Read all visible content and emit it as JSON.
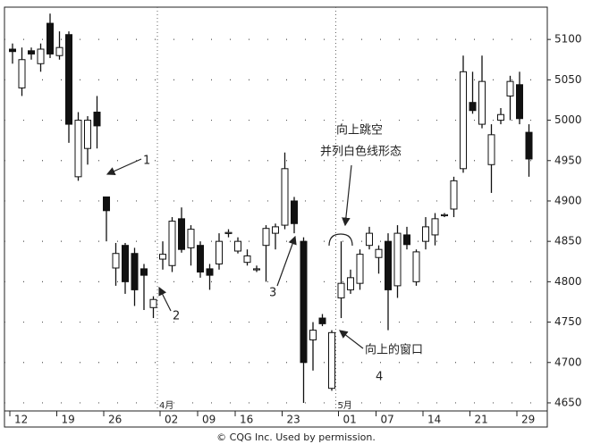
{
  "chart_data": {
    "type": "candlestick",
    "categories": [
      "12",
      null,
      null,
      null,
      null,
      "19",
      null,
      null,
      null,
      null,
      "26",
      null,
      null,
      null,
      null,
      null,
      "02",
      null,
      null,
      null,
      "09",
      null,
      null,
      null,
      "16",
      null,
      null,
      null,
      null,
      "23",
      null,
      null,
      null,
      null,
      null,
      "01",
      null,
      null,
      null,
      "07",
      null,
      null,
      null,
      null,
      "14",
      null,
      null,
      null,
      null,
      "21",
      null,
      null,
      null,
      null,
      "29",
      null
    ],
    "month_labels": [
      null,
      null,
      null,
      null,
      null,
      null,
      null,
      null,
      null,
      null,
      null,
      null,
      null,
      null,
      null,
      null,
      "4月",
      null,
      null,
      null,
      null,
      null,
      null,
      null,
      null,
      null,
      null,
      null,
      null,
      null,
      null,
      null,
      null,
      null,
      null,
      "5月",
      null,
      null,
      null,
      null,
      null,
      null,
      null,
      null,
      null,
      null,
      null,
      null,
      null,
      null,
      null,
      null,
      null,
      null,
      null,
      null
    ],
    "open": [
      5088,
      5040,
      5086,
      5070,
      5120,
      5080,
      5106,
      4930,
      4965,
      5010,
      4905,
      4817,
      4845,
      4835,
      4816,
      4768,
      4828,
      4820,
      4878,
      4842,
      4845,
      4816,
      4822,
      4860,
      4838,
      4824,
      4815,
      4845,
      4860,
      4870,
      4900,
      4850,
      4728,
      4755,
      4668,
      4780,
      4790,
      4798,
      4845,
      4830,
      4850,
      4795,
      4858,
      4800,
      4850,
      4858,
      4882,
      4890,
      4940,
      5022,
      4995,
      4945,
      5000,
      5030,
      5044,
      4985
    ],
    "high": [
      5095,
      5090,
      5090,
      5095,
      5132,
      5110,
      5110,
      5010,
      5005,
      5030,
      4905,
      4848,
      4848,
      4842,
      4822,
      4782,
      4850,
      4880,
      4892,
      4870,
      4850,
      4822,
      4860,
      4865,
      4855,
      4840,
      4820,
      4870,
      4872,
      4960,
      4905,
      4855,
      4750,
      4760,
      4740,
      4850,
      4815,
      4840,
      4868,
      4845,
      4860,
      4870,
      4868,
      4840,
      4880,
      4885,
      4885,
      4930,
      5080,
      5060,
      5080,
      4995,
      5015,
      5055,
      5060,
      4995
    ],
    "low": [
      5070,
      5030,
      5075,
      5060,
      5077,
      5075,
      4972,
      4925,
      4945,
      4965,
      4850,
      4795,
      4785,
      4770,
      4765,
      4755,
      4815,
      4812,
      4836,
      4820,
      4805,
      4790,
      4815,
      4855,
      4835,
      4820,
      4812,
      4800,
      4840,
      4865,
      4860,
      4650,
      4690,
      4745,
      4665,
      4755,
      4785,
      4790,
      4840,
      4810,
      4740,
      4780,
      4840,
      4795,
      4840,
      4845,
      4880,
      4880,
      4935,
      5008,
      4990,
      4910,
      4995,
      5000,
      4995,
      4930
    ],
    "close": [
      5085,
      5075,
      5082,
      5088,
      5082,
      5090,
      4995,
      5000,
      5000,
      4993,
      4888,
      4835,
      4800,
      4790,
      4808,
      4778,
      4834,
      4875,
      4840,
      4865,
      4812,
      4808,
      4850,
      4861,
      4850,
      4832,
      4816,
      4866,
      4868,
      4940,
      4872,
      4700,
      4740,
      4748,
      4737,
      4798,
      4805,
      4834,
      4860,
      4840,
      4790,
      4860,
      4846,
      4837,
      4868,
      4878,
      4883,
      4925,
      5060,
      5012,
      5048,
      4982,
      5007,
      5048,
      5002,
      4952
    ],
    "up_color": "#ffffff",
    "down_color": "#111111",
    "ylim": [
      4640,
      5140
    ],
    "yticks": [
      4650,
      4700,
      4750,
      4800,
      4850,
      4900,
      4950,
      5000,
      5050,
      5100
    ],
    "grid": true,
    "annotations": [
      "1",
      "2",
      "3",
      "4",
      "向上跳空",
      "并列白色线形态",
      "向上的窗口"
    ],
    "credit": "© CQG Inc. Used by permission."
  }
}
